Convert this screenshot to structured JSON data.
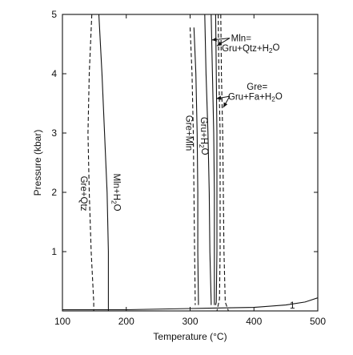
{
  "chart_data": {
    "type": "line",
    "title": "",
    "xlabel": "Temperature (°C)",
    "ylabel": "Pressure (kbar)",
    "xlim": [
      100,
      500
    ],
    "ylim": [
      0,
      5
    ],
    "xticks": [
      100,
      200,
      300,
      400,
      500
    ],
    "yticks": [
      1,
      2,
      3,
      4,
      5
    ],
    "grid": false,
    "series": [
      {
        "label": "Gre+Qtz",
        "style": "dashed",
        "points": [
          [
            146,
            5.0
          ],
          [
            142,
            4.0
          ],
          [
            140,
            3.0
          ],
          [
            142,
            2.0
          ],
          [
            145,
            1.0
          ],
          [
            149,
            0.15
          ],
          [
            149,
            0.0
          ]
        ]
      },
      {
        "label": "Mln+H2O",
        "style": "solid",
        "points": [
          [
            157,
            5.0
          ],
          [
            162,
            4.0
          ],
          [
            166,
            3.0
          ],
          [
            170,
            2.0
          ],
          [
            172,
            1.0
          ],
          [
            172,
            0.0
          ]
        ]
      },
      {
        "label": "Gre+Mln",
        "style": "dashed",
        "points": [
          [
            300,
            4.78
          ],
          [
            303,
            4.0
          ],
          [
            305,
            3.0
          ],
          [
            306,
            2.0
          ],
          [
            307,
            1.0
          ],
          [
            308,
            0.15
          ],
          [
            308,
            0.1
          ]
        ]
      },
      {
        "label": "",
        "style": "solid",
        "points": [
          [
            306,
            4.78
          ],
          [
            309,
            4.0
          ],
          [
            311,
            3.0
          ],
          [
            312,
            2.0
          ],
          [
            312,
            1.0
          ],
          [
            313,
            0.15
          ],
          [
            313,
            0.1
          ]
        ]
      },
      {
        "label": "Gru+H2O",
        "style": "solid",
        "points": [
          [
            323,
            5.0
          ],
          [
            325,
            4.0
          ],
          [
            328,
            3.0
          ],
          [
            330,
            2.0
          ],
          [
            331,
            1.0
          ],
          [
            333,
            0.15
          ],
          [
            333,
            0.1
          ]
        ]
      },
      {
        "label": "Mln= Gru+Qtz+H2O",
        "style": "solid",
        "points": [
          [
            333,
            5.0
          ],
          [
            335,
            4.0
          ],
          [
            337,
            3.0
          ],
          [
            338,
            2.0
          ],
          [
            338,
            1.0
          ],
          [
            338,
            0.15
          ],
          [
            338,
            0.1
          ]
        ]
      },
      {
        "label": "",
        "style": "solid",
        "points": [
          [
            340,
            5.0
          ],
          [
            341,
            4.0
          ],
          [
            342,
            3.0
          ],
          [
            342,
            2.0
          ],
          [
            342,
            1.0
          ],
          [
            341,
            0.15
          ],
          [
            340,
            0.1
          ]
        ]
      },
      {
        "label": "Gre= Gru+Fa+H2O",
        "style": "dashed",
        "points": [
          [
            348,
            5.0
          ],
          [
            349,
            4.0
          ],
          [
            351,
            3.0
          ],
          [
            352,
            2.0
          ],
          [
            353,
            1.0
          ],
          [
            355,
            0.15
          ],
          [
            360,
            0.0
          ]
        ]
      },
      {
        "label": "",
        "style": "dashed",
        "points": [
          [
            344,
            5.0
          ],
          [
            345,
            4.0
          ],
          [
            347,
            3.0
          ],
          [
            347,
            2.0
          ],
          [
            347,
            1.0
          ],
          [
            346,
            0.2
          ],
          [
            342,
            0.0
          ]
        ]
      },
      {
        "label": "1",
        "style": "solid",
        "points": [
          [
            100,
            0.02
          ],
          [
            200,
            0.02
          ],
          [
            300,
            0.04
          ],
          [
            400,
            0.06
          ],
          [
            450,
            0.1
          ],
          [
            480,
            0.15
          ],
          [
            500,
            0.22
          ]
        ]
      }
    ],
    "annotations": [
      {
        "text": "Mln=",
        "side": "right",
        "at": [
          380,
          4.55
        ]
      },
      {
        "text": "Gru+Qtz+H2O",
        "side": "right",
        "at": [
          395,
          4.38
        ]
      },
      {
        "text": "Gre=",
        "side": "right",
        "at": [
          405,
          3.73
        ]
      },
      {
        "text": "Gru+Fa+H2O",
        "side": "right",
        "at": [
          402,
          3.56
        ]
      }
    ]
  }
}
